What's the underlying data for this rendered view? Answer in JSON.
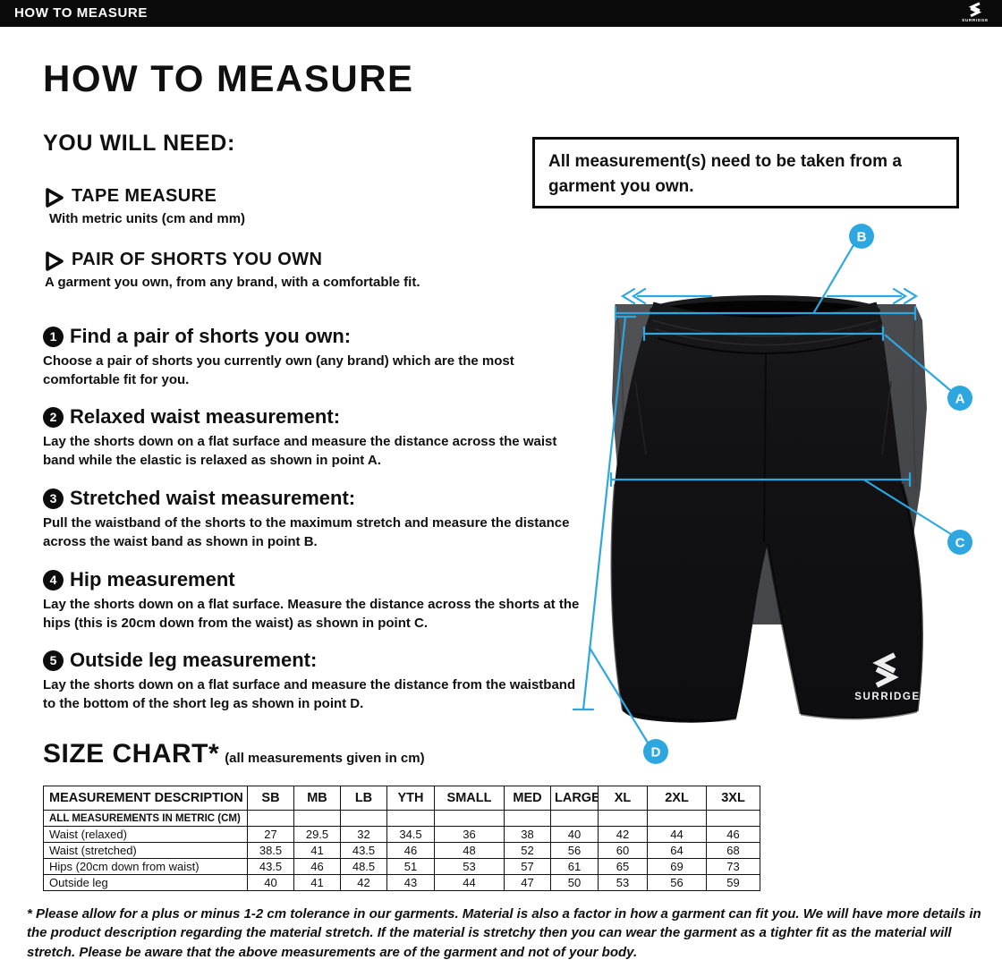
{
  "header": {
    "title": "HOW TO MEASURE",
    "brand": "SURRIDGE"
  },
  "intro": {
    "title": "HOW TO MEASURE"
  },
  "need": {
    "heading": "YOU WILL NEED:",
    "items": [
      {
        "label": "TAPE MEASURE",
        "desc": "With metric units (cm and mm)"
      },
      {
        "label": "PAIR OF SHORTS YOU OWN",
        "desc": "A garment you own, from any brand, with a comfortable fit."
      }
    ]
  },
  "note": {
    "text": "All measurement(s) need to be taken from a garment you own."
  },
  "steps": [
    {
      "num": "1",
      "heading": "Find a pair of shorts you own:",
      "body": "Choose a pair of shorts you currently own (any brand) which are the most comfortable fit for you."
    },
    {
      "num": "2",
      "heading": "Relaxed waist measurement:",
      "body": "Lay the shorts down on a flat surface and measure the distance across the waist band while the elastic is relaxed as shown in point A."
    },
    {
      "num": "3",
      "heading": "Stretched waist measurement:",
      "body": "Pull the waistband of the shorts to the maximum stretch and measure the distance across the waist band as shown in point B."
    },
    {
      "num": "4",
      "heading": "Hip measurement",
      "body": "Lay the shorts down on a flat surface. Measure the distance across the shorts at the hips (this is 20cm down from the waist)  as shown in point C."
    },
    {
      "num": "5",
      "heading": "Outside leg measurement:",
      "body": "Lay the shorts down on a flat surface and measure the distance from the waistband to the bottom of the short leg as shown in point D."
    }
  ],
  "figure": {
    "labels": {
      "a": "A",
      "b": "B",
      "c": "C",
      "d": "D"
    },
    "brand_name": "SURRIDGE",
    "accent_color": "#2EA7E0",
    "shorts_color": "#141416",
    "backdrop_color": "#4A4B4E"
  },
  "size_chart": {
    "heading": "SIZE CHART*",
    "subheading": "(all measurements given in cm)",
    "columns": [
      "MEASUREMENT DESCRIPTION",
      "SB",
      "MB",
      "LB",
      "YTH",
      "SMALL",
      "MED",
      "LARGE",
      "XL",
      "2XL",
      "3XL"
    ],
    "metric_note": "ALL MEASUREMENTS IN METRIC (CM)",
    "rows": [
      {
        "label": "Waist (relaxed)",
        "values": [
          "27",
          "29.5",
          "32",
          "34.5",
          "36",
          "38",
          "40",
          "42",
          "44",
          "46"
        ]
      },
      {
        "label": "Waist (stretched)",
        "values": [
          "38.5",
          "41",
          "43.5",
          "46",
          "48",
          "52",
          "56",
          "60",
          "64",
          "68"
        ]
      },
      {
        "label": "Hips (20cm down from waist)",
        "values": [
          "43.5",
          "46",
          "48.5",
          "51",
          "53",
          "57",
          "61",
          "65",
          "69",
          "73"
        ]
      },
      {
        "label": "Outside leg",
        "values": [
          "40",
          "41",
          "42",
          "43",
          "44",
          "47",
          "50",
          "53",
          "56",
          "59"
        ]
      }
    ]
  },
  "footnote": {
    "text": "* Please allow for a plus or minus 1-2 cm tolerance in our garments. Material is also a factor in how a garment can fit you. We will have more details in the product description regarding the material stretch.  If the material is stretchy then you can wear the garment as a tighter fit as the material will stretch.  Please be aware that the above measurements are of the garment and not of your body."
  }
}
